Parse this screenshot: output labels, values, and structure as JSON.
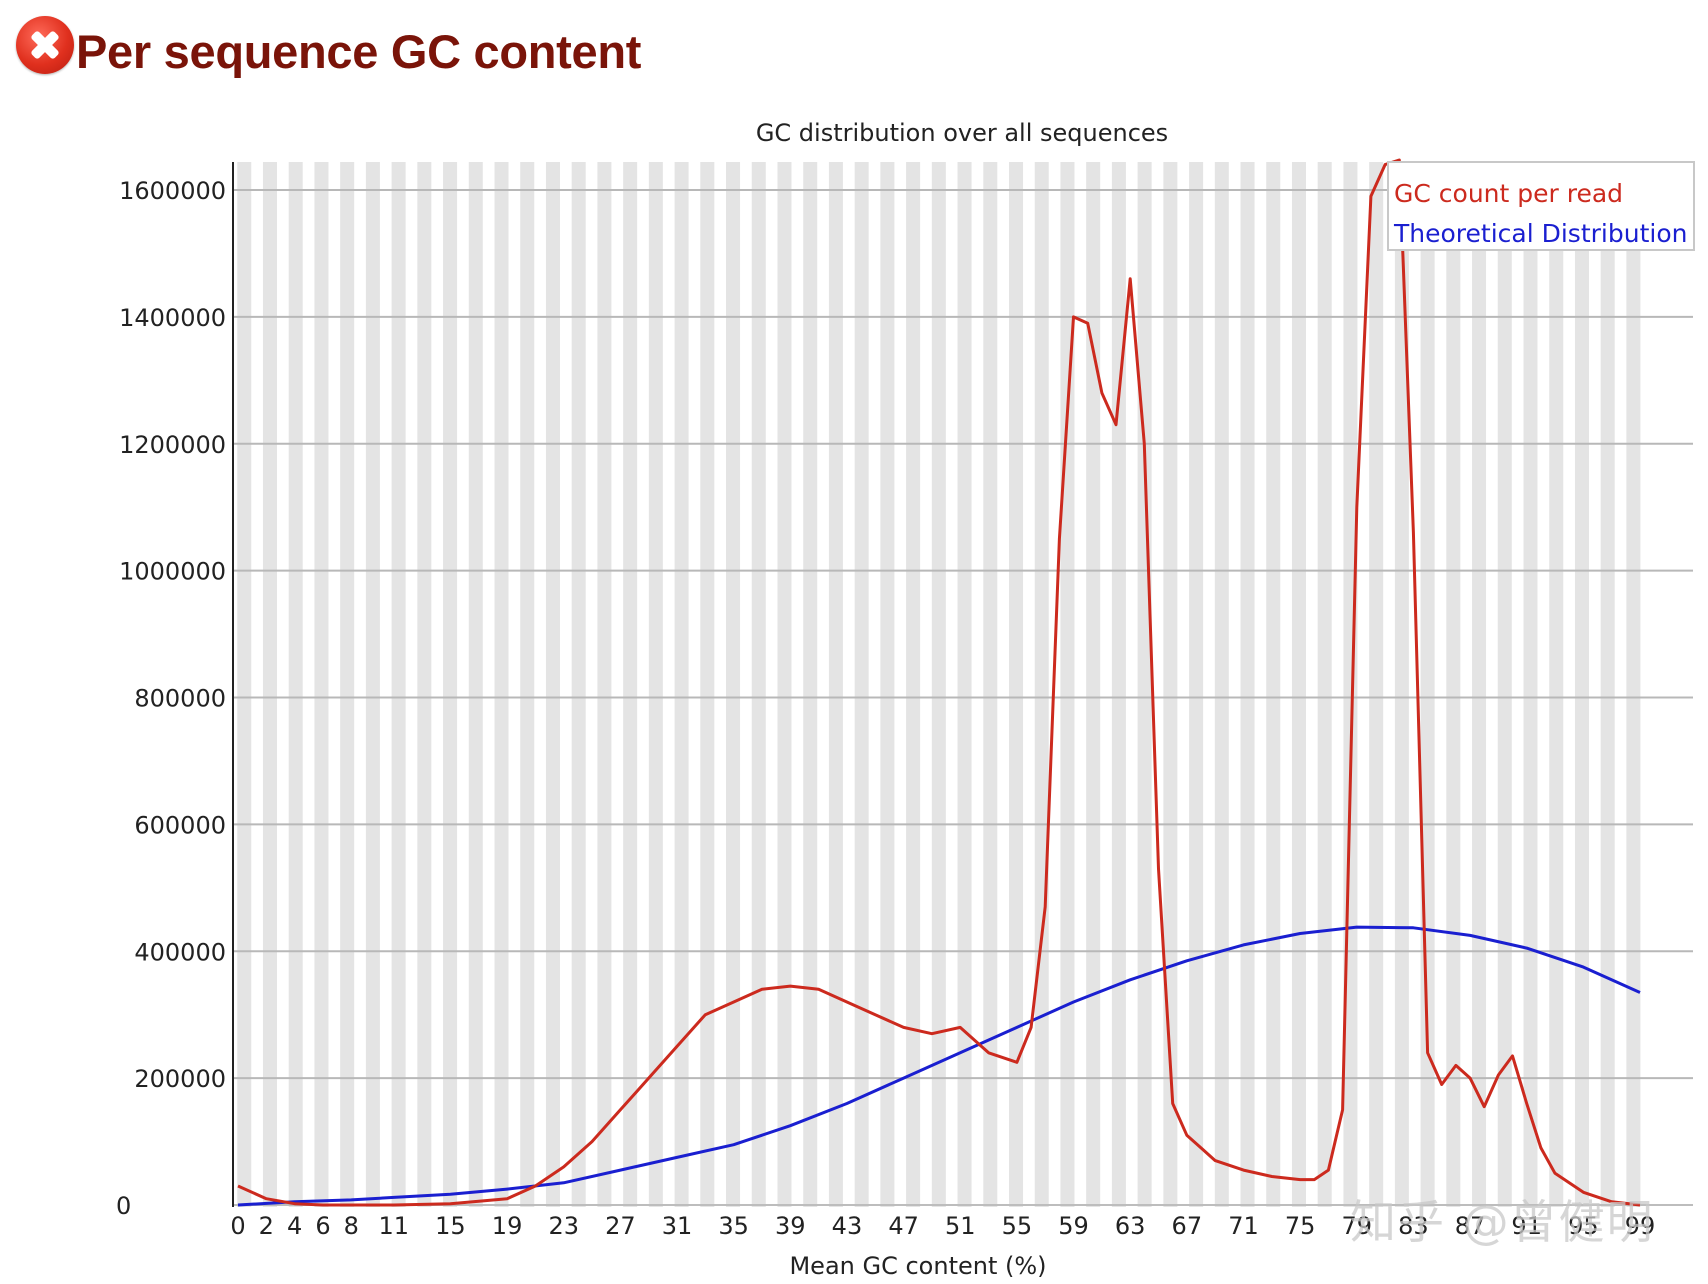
{
  "header": {
    "status_icon": "error-x-icon",
    "title": "Per sequence GC content"
  },
  "chart": {
    "title": "GC distribution over all sequences",
    "xlabel": "Mean GC content (%)",
    "legend": [
      {
        "label": "GC count per read",
        "color": "#cc2a1e"
      },
      {
        "label": "Theoretical Distribution",
        "color": "#1a1fd0"
      }
    ],
    "y_ticks": [
      "0",
      "200000",
      "400000",
      "600000",
      "800000",
      "1000000",
      "1200000",
      "1400000",
      "1600000"
    ],
    "x_ticks": [
      "0",
      "2",
      "4",
      "6",
      "8",
      "11",
      "15",
      "19",
      "23",
      "27",
      "31",
      "35",
      "39",
      "43",
      "47",
      "51",
      "55",
      "59",
      "63",
      "67",
      "71",
      "75",
      "79",
      "83",
      "87",
      "91",
      "95",
      "99"
    ]
  },
  "watermark": "知乎 @曾健明",
  "chart_data": {
    "type": "line",
    "title": "GC distribution over all sequences",
    "xlabel": "Mean GC content (%)",
    "ylabel": "",
    "ylim": [
      0,
      1660000
    ],
    "xlim": [
      0,
      100
    ],
    "grid": true,
    "legend_position": "top-right",
    "x_tick_labels": [
      "0",
      "2",
      "4",
      "6",
      "8",
      "11",
      "15",
      "19",
      "23",
      "27",
      "31",
      "35",
      "39",
      "43",
      "47",
      "51",
      "55",
      "59",
      "63",
      "67",
      "71",
      "75",
      "79",
      "83",
      "87",
      "91",
      "95",
      "99"
    ],
    "series": [
      {
        "name": "GC count per read",
        "color": "#cc2a1e",
        "x": [
          0,
          2,
          4,
          6,
          8,
          11,
          15,
          19,
          21,
          23,
          25,
          27,
          29,
          31,
          33,
          35,
          37,
          39,
          41,
          43,
          45,
          47,
          49,
          51,
          53,
          55,
          56,
          57,
          58,
          59,
          60,
          61,
          62,
          63,
          64,
          65,
          66,
          67,
          68,
          69,
          71,
          73,
          75,
          76,
          77,
          78,
          79,
          80,
          81,
          82,
          83,
          84,
          85,
          86,
          87,
          88,
          89,
          90,
          91,
          92,
          93,
          95,
          97,
          99
        ],
        "values": [
          30000,
          10000,
          2000,
          0,
          0,
          0,
          2000,
          10000,
          30000,
          60000,
          100000,
          150000,
          200000,
          250000,
          300000,
          320000,
          340000,
          345000,
          340000,
          320000,
          300000,
          280000,
          270000,
          280000,
          240000,
          225000,
          280000,
          470000,
          1050000,
          1400000,
          1390000,
          1280000,
          1230000,
          1460000,
          1200000,
          530000,
          160000,
          110000,
          90000,
          70000,
          55000,
          45000,
          40000,
          40000,
          55000,
          150000,
          1100000,
          1590000,
          1640000,
          1670000,
          1060000,
          240000,
          190000,
          220000,
          200000,
          155000,
          205000,
          235000,
          160000,
          90000,
          50000,
          20000,
          5000,
          0
        ]
      },
      {
        "name": "Theoretical Distribution",
        "color": "#1a1fd0",
        "x": [
          0,
          4,
          8,
          11,
          15,
          19,
          23,
          27,
          31,
          35,
          39,
          43,
          47,
          51,
          55,
          59,
          63,
          67,
          71,
          75,
          79,
          83,
          87,
          91,
          95,
          99
        ],
        "values": [
          0,
          5000,
          8000,
          12000,
          17000,
          25000,
          35000,
          55000,
          75000,
          95000,
          125000,
          160000,
          200000,
          240000,
          280000,
          320000,
          355000,
          385000,
          410000,
          428000,
          438000,
          437000,
          425000,
          405000,
          375000,
          335000
        ]
      }
    ]
  }
}
